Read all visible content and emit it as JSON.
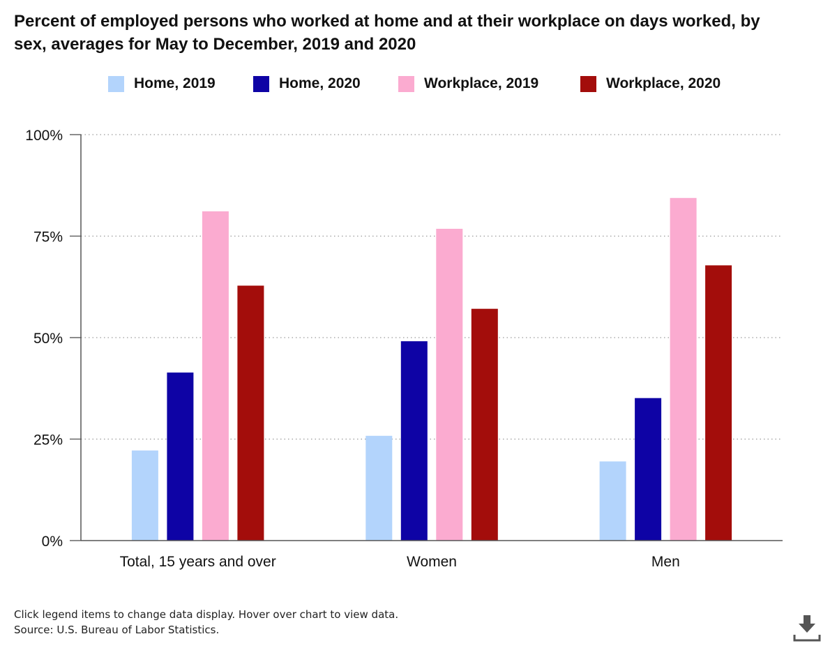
{
  "chart_data": {
    "type": "bar",
    "title": "Percent of employed persons who worked at home and at their workplace on days worked, by sex, averages for May to December, 2019 and 2020",
    "categories": [
      "Total, 15 years and over",
      "Women",
      "Men"
    ],
    "series": [
      {
        "name": "Home, 2019",
        "color": "#b3d4fc",
        "values": [
          22.2,
          25.8,
          19.5
        ]
      },
      {
        "name": "Home, 2020",
        "color": "#0e03a5",
        "values": [
          41.4,
          49.1,
          35.1
        ]
      },
      {
        "name": "Workplace, 2019",
        "color": "#fbabd0",
        "values": [
          81.1,
          76.8,
          84.4
        ]
      },
      {
        "name": "Workplace, 2020",
        "color": "#a30d0b",
        "values": [
          62.8,
          57.1,
          67.8
        ]
      }
    ],
    "ylim": [
      0,
      100
    ],
    "yticks": [
      "0%",
      "25%",
      "50%",
      "75%",
      "100%"
    ],
    "ytick_values": [
      0,
      25,
      50,
      75,
      100
    ],
    "xlabel": "",
    "ylabel": "",
    "grid": true,
    "legend": "top"
  },
  "notes": {
    "interaction": "Click legend items to change data display. Hover over chart to view data.",
    "source": "Source: U.S. Bureau of Labor Statistics."
  },
  "icons": {
    "download": "download-icon"
  }
}
